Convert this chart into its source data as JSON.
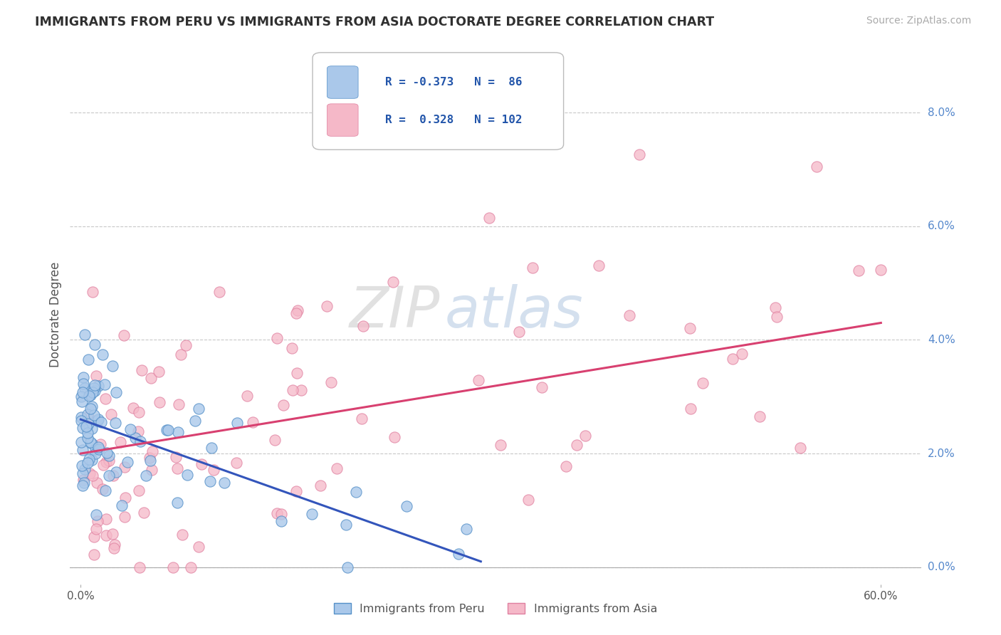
{
  "title": "IMMIGRANTS FROM PERU VS IMMIGRANTS FROM ASIA DOCTORATE DEGREE CORRELATION CHART",
  "source_text": "Source: ZipAtlas.com",
  "ylabel": "Doctorate Degree",
  "xlabel_ticks": [
    "0.0%",
    "60.0%"
  ],
  "xlabel_vals": [
    0.0,
    0.6
  ],
  "ytick_labels": [
    "0.0%",
    "2.0%",
    "4.0%",
    "6.0%",
    "8.0%"
  ],
  "ytick_vals": [
    0.0,
    0.02,
    0.04,
    0.06,
    0.08
  ],
  "xlim": [
    -0.008,
    0.63
  ],
  "ylim": [
    -0.003,
    0.092
  ],
  "peru_color": "#aac8ea",
  "peru_edge_color": "#5590c8",
  "asia_color": "#f5b8c8",
  "asia_edge_color": "#e080a0",
  "trend_peru_color": "#3355bb",
  "trend_asia_color": "#d84070",
  "legend_label_peru": "Immigrants from Peru",
  "legend_label_asia": "Immigrants from Asia",
  "watermark_zip": "ZIP",
  "watermark_atlas": "atlas",
  "background_color": "#ffffff",
  "grid_color": "#c8c8c8",
  "title_color": "#303030",
  "ytick_label_color": "#5588cc",
  "peru_trend_x0": 0.0,
  "peru_trend_x1": 0.3,
  "peru_trend_y0": 0.026,
  "peru_trend_y1": 0.001,
  "asia_trend_x0": 0.0,
  "asia_trend_x1": 0.6,
  "asia_trend_y0": 0.02,
  "asia_trend_y1": 0.043
}
